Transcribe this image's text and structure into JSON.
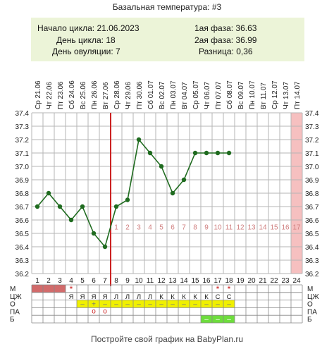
{
  "title": "Базальная температура: #3",
  "info": {
    "cycle_start": "Начало цикла: 21.06.2023",
    "cycle_day": "День цикла: 18",
    "ovulation_day": "День овуляции: 7",
    "phase1": "1ая фаза: 36.63",
    "phase2": "2ая фаза: 36.99",
    "difference": "Разница: 0,36"
  },
  "footer": "Постройте свой график на BabyPlan.ru",
  "colors": {
    "line": "#1f6b1f",
    "ovulation": "#cc2222",
    "phase_numbers": "#d08080",
    "today_shade": "#f6c0c0",
    "info_bg": "#ecf4d8",
    "mens_cell": "#d26b6b",
    "mucus_cell": "#f0f000",
    "sex_cell": "#6ddd3c",
    "grid": "#b5b5b5"
  },
  "chart_data": {
    "type": "line",
    "title": "Базальная температура: #3",
    "dates": [
      "21.06",
      "22.06",
      "23.06",
      "24.06",
      "25.06",
      "26.06",
      "27.06",
      "28.06",
      "29.06",
      "30.06",
      "01.07",
      "02.07",
      "03.07",
      "04.07",
      "05.07",
      "06.07",
      "07.07",
      "08.07",
      "09.07",
      "10.07",
      "11.07",
      "12.07",
      "13.07",
      "14.07"
    ],
    "weekdays": [
      "Ср",
      "Чт",
      "Пт",
      "Сб",
      "Вс",
      "Пн",
      "Вт",
      "Ср",
      "Чт",
      "Пт",
      "Сб",
      "Вс",
      "Пн",
      "Вт",
      "Ср",
      "Чт",
      "Пт",
      "Сб",
      "Вс",
      "Пн",
      "Вт",
      "Ср",
      "Чт",
      "Пт"
    ],
    "days": [
      1,
      2,
      3,
      4,
      5,
      6,
      7,
      8,
      9,
      10,
      11,
      12,
      13,
      14,
      15,
      16,
      17,
      18,
      19,
      20,
      21,
      22,
      23,
      24
    ],
    "series": [
      {
        "values": [
          36.7,
          36.8,
          36.7,
          36.6,
          36.7,
          36.5,
          36.4,
          36.7,
          36.75,
          37.2,
          37.1,
          37.0,
          36.8,
          36.9,
          37.1,
          37.1,
          37.1,
          37.1,
          null,
          null,
          null,
          null,
          null,
          null
        ]
      }
    ],
    "ylim": [
      36.2,
      37.4
    ],
    "yticks": [
      "36.2",
      "36.3",
      "36.4",
      "36.5",
      "36.6",
      "36.7",
      "36.8",
      "36.9",
      "37.0",
      "37.1",
      "37.2",
      "37.3",
      "37.4"
    ],
    "ovulation_day": 7,
    "today_day": 24,
    "phase_labels": [
      "1",
      "2",
      "3",
      "4",
      "5",
      "6",
      "7",
      "8",
      "9",
      "10",
      "11",
      "12",
      "13",
      "14",
      "15",
      "16",
      "17"
    ],
    "grid": true
  },
  "table": {
    "row_labels": [
      "М",
      "ЦЖ",
      "О",
      "ПА",
      "Б"
    ],
    "mens_days": [
      1,
      2,
      3
    ],
    "mens_star_days": [
      4,
      17,
      18
    ],
    "mucus_letters": [
      "",
      "",
      "",
      "Я",
      "Я",
      "Я",
      "Я",
      "Л",
      "Л",
      "Л",
      "Л",
      "К",
      "К",
      "К",
      "К",
      "К",
      "С",
      "С",
      "",
      "",
      "",
      "",
      "",
      ""
    ],
    "mucus_marks": [
      "",
      "",
      "",
      "",
      "–",
      "+",
      "–",
      "–",
      "–",
      "–",
      "–",
      "–",
      "–",
      "–",
      "–",
      "–",
      "–",
      "–",
      "",
      "",
      "",
      "",
      "",
      ""
    ],
    "sex_marks": [
      "",
      "",
      "",
      "",
      "",
      "о",
      "о",
      "",
      "",
      "",
      "",
      "",
      "",
      "",
      "",
      "",
      "",
      "",
      "",
      "",
      "",
      "",
      "",
      ""
    ],
    "b_marks": [
      "",
      "",
      "",
      "",
      "",
      "",
      "",
      "",
      "",
      "",
      "",
      "",
      "",
      "",
      "",
      "–",
      "–",
      "–",
      "",
      "",
      "",
      "",
      "",
      ""
    ]
  }
}
